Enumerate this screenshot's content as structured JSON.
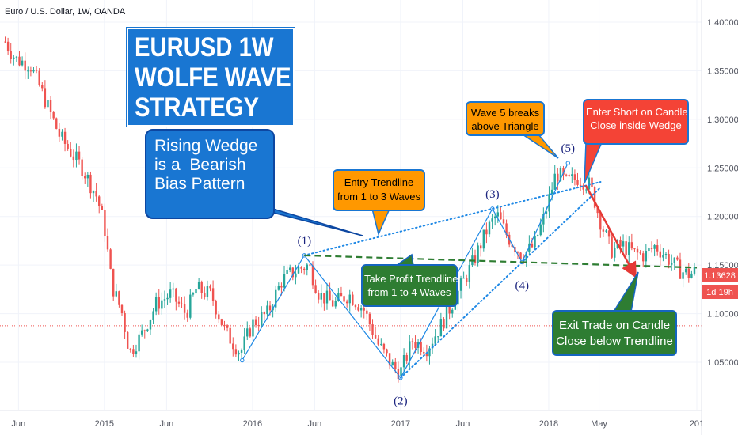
{
  "header": {
    "symbol_label": "Euro / U.S. Dollar, 1W, OANDA"
  },
  "colors": {
    "bull": "#26a69a",
    "bear": "#ef5350",
    "accent_blue": "#1976d2",
    "trend_green": "#2e7d32",
    "arrow_red": "#e53935",
    "pattern_line": "#1e88e5"
  },
  "annotations": {
    "title": [
      "EURUSD 1W",
      "WOLFE WAVE",
      "STRATEGY"
    ],
    "rising_wedge": [
      "Rising Wedge",
      "is a  Bearish",
      "Bias Pattern"
    ],
    "entry_trendline": [
      "Entry Trendline",
      "from 1 to 3 Waves"
    ],
    "wave5_breaks": [
      "Wave 5 breaks",
      "above Triangle"
    ],
    "enter_short": [
      "Enter Short on Candle",
      "Close inside Wedge"
    ],
    "take_profit": [
      "Take Profit Trendline",
      "from 1 to 4 Waves"
    ],
    "exit_trade": [
      "Exit Trade on Candle",
      "Close below Trendline"
    ]
  },
  "price_axis": {
    "current_price_label": "1.13628",
    "countdown_label": "1d 19h"
  },
  "chart_data": {
    "type": "candlestick",
    "title": "Euro / U.S. Dollar, 1W, OANDA",
    "ylim": [
      1.0,
      1.42
    ],
    "y_ticks": [
      "1.05000",
      "1.10000",
      "1.15000",
      "1.20000",
      "1.25000",
      "1.30000",
      "1.35000",
      "1.40000"
    ],
    "x_ticks": [
      "Jun",
      "2015",
      "Jun",
      "2016",
      "Jun",
      "2017",
      "Jun",
      "2018",
      "May",
      "201"
    ],
    "current_price": 1.13628,
    "reference_level": 1.0875,
    "price_path": [
      {
        "t": 2014.33,
        "p": 1.38
      },
      {
        "t": 2014.4,
        "p": 1.362
      },
      {
        "t": 2014.5,
        "p": 1.356
      },
      {
        "t": 2014.6,
        "p": 1.32
      },
      {
        "t": 2014.7,
        "p": 1.282
      },
      {
        "t": 2014.85,
        "p": 1.25
      },
      {
        "t": 2014.95,
        "p": 1.22
      },
      {
        "t": 2015.0,
        "p": 1.19
      },
      {
        "t": 2015.05,
        "p": 1.13
      },
      {
        "t": 2015.12,
        "p": 1.1
      },
      {
        "t": 2015.17,
        "p": 1.06
      },
      {
        "t": 2015.25,
        "p": 1.078
      },
      {
        "t": 2015.35,
        "p": 1.11
      },
      {
        "t": 2015.45,
        "p": 1.12
      },
      {
        "t": 2015.55,
        "p": 1.1
      },
      {
        "t": 2015.62,
        "p": 1.125
      },
      {
        "t": 2015.72,
        "p": 1.12
      },
      {
        "t": 2015.82,
        "p": 1.08
      },
      {
        "t": 2015.92,
        "p": 1.06
      },
      {
        "t": 2016.0,
        "p": 1.09
      },
      {
        "t": 2016.1,
        "p": 1.1
      },
      {
        "t": 2016.2,
        "p": 1.135
      },
      {
        "t": 2016.3,
        "p": 1.145
      },
      {
        "t": 2016.38,
        "p": 1.15
      },
      {
        "t": 2016.45,
        "p": 1.12
      },
      {
        "t": 2016.55,
        "p": 1.11
      },
      {
        "t": 2016.65,
        "p": 1.12
      },
      {
        "t": 2016.75,
        "p": 1.105
      },
      {
        "t": 2016.85,
        "p": 1.068
      },
      {
        "t": 2016.95,
        "p": 1.045
      },
      {
        "t": 2017.0,
        "p": 1.04
      },
      {
        "t": 2017.08,
        "p": 1.072
      },
      {
        "t": 2017.18,
        "p": 1.065
      },
      {
        "t": 2017.28,
        "p": 1.09
      },
      {
        "t": 2017.38,
        "p": 1.12
      },
      {
        "t": 2017.48,
        "p": 1.15
      },
      {
        "t": 2017.58,
        "p": 1.185
      },
      {
        "t": 2017.65,
        "p": 1.202
      },
      {
        "t": 2017.72,
        "p": 1.18
      },
      {
        "t": 2017.82,
        "p": 1.16
      },
      {
        "t": 2017.9,
        "p": 1.17
      },
      {
        "t": 2017.97,
        "p": 1.2
      },
      {
        "t": 2018.05,
        "p": 1.245
      },
      {
        "t": 2018.12,
        "p": 1.235
      },
      {
        "t": 2018.2,
        "p": 1.24
      },
      {
        "t": 2018.28,
        "p": 1.232
      },
      {
        "t": 2018.35,
        "p": 1.195
      },
      {
        "t": 2018.42,
        "p": 1.165
      },
      {
        "t": 2018.5,
        "p": 1.17
      },
      {
        "t": 2018.58,
        "p": 1.162
      },
      {
        "t": 2018.65,
        "p": 1.16
      },
      {
        "t": 2018.72,
        "p": 1.17
      },
      {
        "t": 2018.8,
        "p": 1.158
      },
      {
        "t": 2018.88,
        "p": 1.145
      },
      {
        "t": 2018.95,
        "p": 1.14
      },
      {
        "t": 2019.0,
        "p": 1.145
      }
    ],
    "waves": [
      {
        "label": "(1)",
        "t": 2016.35,
        "p": 1.16
      },
      {
        "label": "(2)",
        "t": 2017.0,
        "p": 1.034
      },
      {
        "label": "(3)",
        "t": 2017.62,
        "p": 1.208
      },
      {
        "label": "(4)",
        "t": 2017.82,
        "p": 1.153
      },
      {
        "label": "(5)",
        "t": 2018.13,
        "p": 1.255
      }
    ],
    "pattern_start": {
      "t": 2015.93,
      "p": 1.052
    },
    "target_point": {
      "t": 2018.58,
      "p": 1.14
    }
  }
}
